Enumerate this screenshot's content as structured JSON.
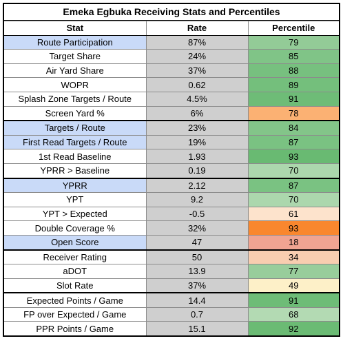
{
  "title": "Emeka Egbuka Receiving Stats and Percentiles",
  "headers": {
    "stat": "Stat",
    "rate": "Rate",
    "percentile": "Percentile"
  },
  "colors": {
    "stat_highlight": "#c9daf8",
    "stat_plain": "#ffffff",
    "rate_bg": "#cfcfcf"
  },
  "rows": [
    {
      "stat": "Route Participation",
      "rate": "87%",
      "percentile": "79",
      "highlight": true,
      "pct_color": "#93cb97",
      "sep": false
    },
    {
      "stat": "Target Share",
      "rate": "24%",
      "percentile": "85",
      "highlight": false,
      "pct_color": "#80c487",
      "sep": false
    },
    {
      "stat": "Air Yard Share",
      "rate": "37%",
      "percentile": "88",
      "highlight": false,
      "pct_color": "#77c07f",
      "sep": false
    },
    {
      "stat": "WOPR",
      "rate": "0.62",
      "percentile": "89",
      "highlight": false,
      "pct_color": "#74bf7c",
      "sep": false
    },
    {
      "stat": "Splash Zone Targets / Route",
      "rate": "4.5%",
      "percentile": "91",
      "highlight": false,
      "pct_color": "#6ebc77",
      "sep": false
    },
    {
      "stat": "Screen Yard %",
      "rate": "6%",
      "percentile": "78",
      "highlight": false,
      "pct_color": "#fbb173",
      "sep": true
    },
    {
      "stat": "Targets / Route",
      "rate": "23%",
      "percentile": "84",
      "highlight": true,
      "pct_color": "#83c589",
      "sep": false
    },
    {
      "stat": "First Read Targets / Route",
      "rate": "19%",
      "percentile": "87",
      "highlight": true,
      "pct_color": "#7ac282",
      "sep": false
    },
    {
      "stat": "1st Read Baseline",
      "rate": "1.93",
      "percentile": "93",
      "highlight": false,
      "pct_color": "#69ba72",
      "sep": false
    },
    {
      "stat": "YPRR > Baseline",
      "rate": "0.19",
      "percentile": "70",
      "highlight": false,
      "pct_color": "#acd7ad",
      "sep": true
    },
    {
      "stat": "YPRR",
      "rate": "2.12",
      "percentile": "87",
      "highlight": true,
      "pct_color": "#7ac282",
      "sep": false
    },
    {
      "stat": "YPT",
      "rate": "9.2",
      "percentile": "70",
      "highlight": false,
      "pct_color": "#acd7ad",
      "sep": false
    },
    {
      "stat": "YPT > Expected",
      "rate": "-0.5",
      "percentile": "61",
      "highlight": false,
      "pct_color": "#fde3cc",
      "sep": false
    },
    {
      "stat": "Double Coverage %",
      "rate": "32%",
      "percentile": "93",
      "highlight": false,
      "pct_color": "#f9872e",
      "sep": false
    },
    {
      "stat": "Open Score",
      "rate": "47",
      "percentile": "18",
      "highlight": true,
      "pct_color": "#f0a492",
      "sep": true
    },
    {
      "stat": "Receiver Rating",
      "rate": "50",
      "percentile": "34",
      "highlight": false,
      "pct_color": "#f8cdb0",
      "sep": false
    },
    {
      "stat": "aDOT",
      "rate": "13.9",
      "percentile": "77",
      "highlight": false,
      "pct_color": "#98cd9b",
      "sep": false
    },
    {
      "stat": "Slot Rate",
      "rate": "37%",
      "percentile": "49",
      "highlight": false,
      "pct_color": "#fdf0c8",
      "sep": true
    },
    {
      "stat": "Expected Points / Game",
      "rate": "14.4",
      "percentile": "91",
      "highlight": false,
      "pct_color": "#6ebc77",
      "sep": false
    },
    {
      "stat": "FP over Expected / Game",
      "rate": "0.7",
      "percentile": "68",
      "highlight": false,
      "pct_color": "#b3dab3",
      "sep": false
    },
    {
      "stat": "PPR Points / Game",
      "rate": "15.1",
      "percentile": "92",
      "highlight": false,
      "pct_color": "#6bbb74",
      "sep": false
    }
  ]
}
